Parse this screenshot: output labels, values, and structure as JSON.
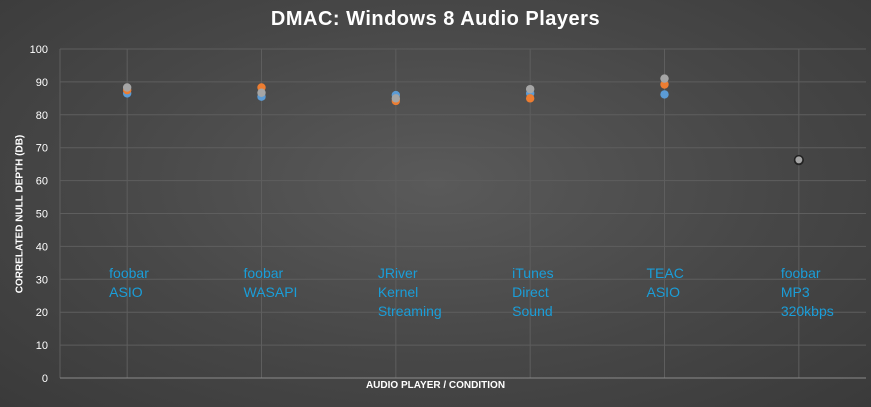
{
  "chart_data": {
    "type": "scatter",
    "title": "DMAC: Windows 8 Audio Players",
    "xlabel": "AUDIO PLAYER / CONDITION",
    "ylabel": "CORRELATED NULL DEPTH (DB)",
    "ylim": [
      0,
      100
    ],
    "yticks": [
      0,
      10,
      20,
      30,
      40,
      50,
      60,
      70,
      80,
      90,
      100
    ],
    "x": [
      1,
      2,
      3,
      4,
      5,
      6
    ],
    "grid": true,
    "legend": "none",
    "categories": [
      [
        "foobar",
        "ASIO"
      ],
      [
        "foobar",
        "WASAPI"
      ],
      [
        "JRiver",
        "Kernel",
        "Streaming"
      ],
      [
        "iTunes",
        "Direct",
        "Sound"
      ],
      [
        "TEAC",
        "ASIO"
      ],
      [
        "foobar",
        "MP3",
        "320kbps"
      ]
    ],
    "series": [
      {
        "color": "#5b9bd5",
        "values": [
          86.5,
          85.5,
          86.0,
          86.5,
          86.2,
          66.2
        ]
      },
      {
        "color": "#ed7d31",
        "values": [
          87.5,
          88.3,
          84.2,
          85.0,
          89.2,
          66.2
        ]
      },
      {
        "color": "#a5a5a5",
        "values": [
          88.3,
          86.7,
          85.0,
          87.8,
          91.0,
          66.3
        ]
      }
    ],
    "colors": {
      "background": "#474747",
      "grid": "#5e5e5e",
      "text": "#ffffff",
      "annotation": "#1a9ed9"
    }
  }
}
